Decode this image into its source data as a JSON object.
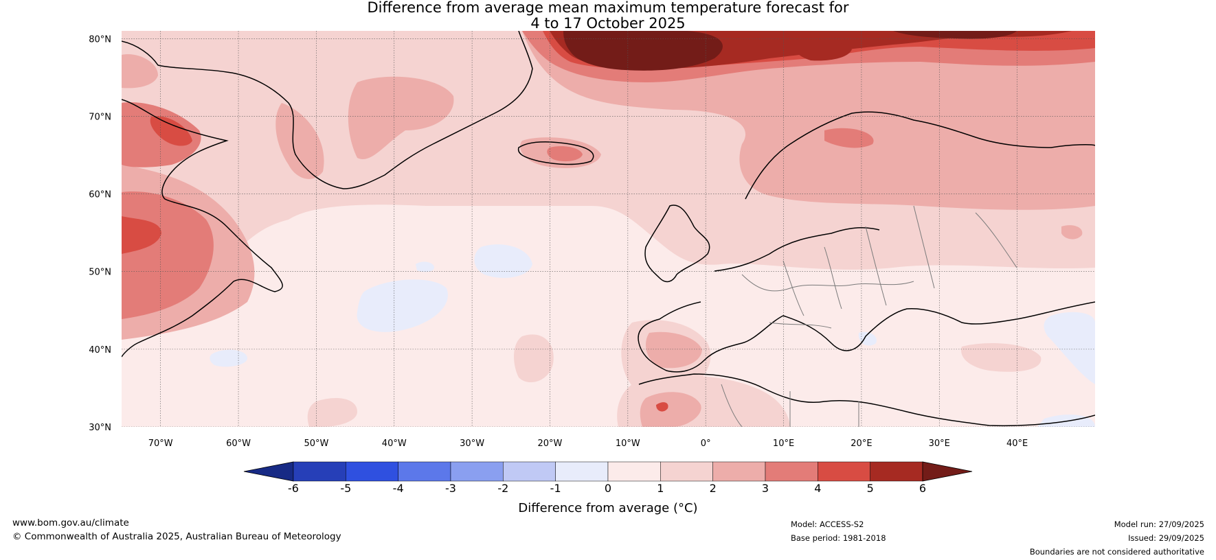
{
  "title_line1": "Difference from average mean maximum temperature forecast for",
  "title_line2": "4 to 17 October 2025",
  "lat_labels": [
    "80°N",
    "70°N",
    "60°N",
    "50°N",
    "40°N",
    "30°N"
  ],
  "lon_labels": [
    "70°W",
    "60°W",
    "50°W",
    "40°W",
    "30°W",
    "20°W",
    "10°W",
    "0°",
    "10°E",
    "20°E",
    "30°E",
    "40°E"
  ],
  "map_extent": {
    "lon_min": -75,
    "lon_max": 50,
    "lat_min": 30,
    "lat_max": 81
  },
  "colorbar": {
    "title": "Difference from average (°C)",
    "ticks": [
      "-6",
      "-5",
      "-4",
      "-3",
      "-2",
      "-1",
      "0",
      "1",
      "2",
      "3",
      "4",
      "5",
      "6"
    ],
    "colors": [
      "#172a85",
      "#263fb8",
      "#2f50e0",
      "#5c78ea",
      "#8a9ff0",
      "#c0c9f5",
      "#e8ecfb",
      "#fcebea",
      "#f5d3d1",
      "#edadaa",
      "#e37c78",
      "#d84c43",
      "#a62a22",
      "#731c18"
    ]
  },
  "footer": {
    "website": "www.bom.gov.au/climate",
    "copyright": "© Commonwealth of Australia 2025, Australian Bureau of Meteorology",
    "model": "Model: ACCESS-S2",
    "base_period": "Base period: 1981-2018",
    "model_run": "Model run: 27/09/2025",
    "issued": "Issued: 29/09/2025",
    "disclaimer": "Boundaries are not considered authoritative"
  }
}
